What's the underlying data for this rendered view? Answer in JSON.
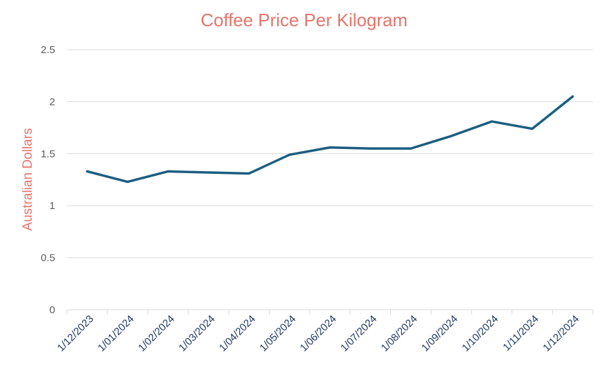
{
  "chart_data": {
    "type": "line",
    "title": "Coffee Price Per Kilogram",
    "xlabel": "",
    "ylabel": "Australian Dollars",
    "ylim": [
      0,
      2.5
    ],
    "yticks": [
      "0",
      "0.5",
      "1",
      "1.5",
      "2",
      "2.5"
    ],
    "grid": true,
    "legend": "none",
    "categories": [
      "1/12/2023",
      "1/01/2024",
      "1/02/2024",
      "1/03/2024",
      "1/04/2024",
      "1/05/2024",
      "1/06/2024",
      "1/07/2024",
      "1/08/2024",
      "1/09/2024",
      "1/10/2024",
      "1/11/2024",
      "1/12/2024"
    ],
    "series": [
      {
        "name": "Coffee Price",
        "color": "#1b5e80",
        "values": [
          1.33,
          1.23,
          1.33,
          1.32,
          1.31,
          1.49,
          1.56,
          1.55,
          1.55,
          1.67,
          1.81,
          1.74,
          2.05
        ]
      }
    ]
  }
}
